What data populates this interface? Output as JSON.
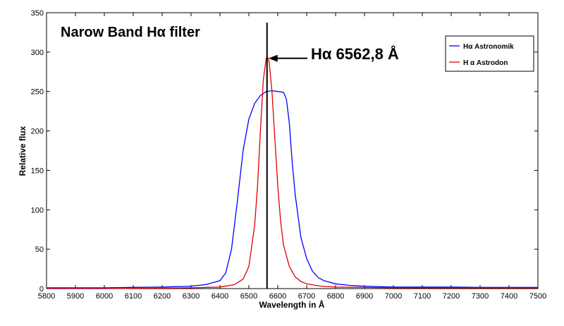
{
  "chart_data": {
    "type": "line",
    "title": "Narow Band Hα filter",
    "xlabel": "Wavelength in Å",
    "ylabel": "Relative flux",
    "xlim": [
      5800,
      7500
    ],
    "ylim": [
      0,
      350
    ],
    "xticks": [
      5800,
      5900,
      6000,
      6100,
      6200,
      6300,
      6400,
      6500,
      6600,
      6700,
      6800,
      6900,
      7000,
      7100,
      7200,
      7300,
      7400,
      7500
    ],
    "yticks": [
      0,
      50,
      100,
      150,
      200,
      250,
      300,
      350
    ],
    "grid": false,
    "legend_position": "top-right",
    "annotation": {
      "text": "Hα 6562,8 Å",
      "marker_x": 6562.8,
      "arrow_target_y": 293
    },
    "series": [
      {
        "name": "Hα Astronomik",
        "color": "#0000ff",
        "x": [
          5800,
          5900,
          6000,
          6100,
          6200,
          6300,
          6350,
          6400,
          6420,
          6440,
          6460,
          6480,
          6500,
          6520,
          6540,
          6560,
          6580,
          6600,
          6620,
          6630,
          6640,
          6650,
          6660,
          6680,
          6700,
          6720,
          6740,
          6760,
          6800,
          6850,
          6900,
          7000,
          7100,
          7200,
          7300,
          7400,
          7500
        ],
        "y": [
          1,
          1,
          1,
          1.5,
          2,
          3,
          5,
          10,
          20,
          50,
          110,
          175,
          215,
          235,
          245,
          250,
          251,
          250,
          249,
          240,
          210,
          160,
          120,
          65,
          38,
          22,
          14,
          10,
          6,
          4,
          3,
          2,
          2,
          2,
          1.5,
          1.5,
          1.5
        ]
      },
      {
        "name": "H α Astrodon",
        "color": "#e00000",
        "x": [
          5800,
          6000,
          6200,
          6300,
          6400,
          6450,
          6480,
          6500,
          6520,
          6530,
          6540,
          6550,
          6560,
          6565,
          6570,
          6580,
          6590,
          6600,
          6610,
          6620,
          6640,
          6660,
          6680,
          6700,
          6750,
          6800,
          7000,
          7200,
          7500
        ],
        "y": [
          0,
          0,
          0.5,
          1,
          2,
          5,
          12,
          28,
          80,
          130,
          200,
          265,
          292,
          293,
          288,
          250,
          190,
          130,
          85,
          55,
          28,
          15,
          9,
          6,
          3,
          2,
          1,
          1,
          1
        ]
      }
    ]
  }
}
